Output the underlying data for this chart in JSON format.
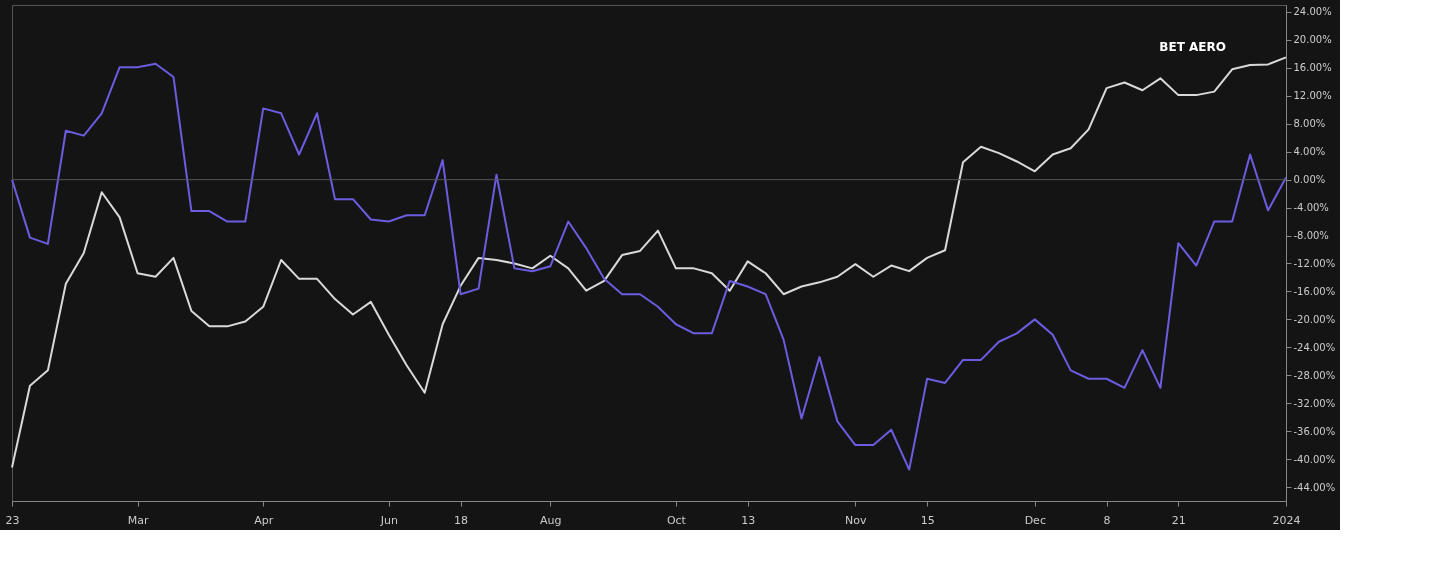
{
  "chart_data": {
    "type": "line",
    "categories": [
      "23",
      null,
      null,
      null,
      null,
      null,
      null,
      "Mar",
      null,
      null,
      null,
      null,
      null,
      null,
      "Apr",
      null,
      null,
      null,
      null,
      null,
      null,
      "Jun",
      null,
      null,
      null,
      "18",
      null,
      null,
      null,
      null,
      "Aug",
      null,
      null,
      null,
      null,
      null,
      null,
      "Oct",
      null,
      null,
      null,
      "13",
      null,
      null,
      null,
      null,
      null,
      "Nov",
      null,
      null,
      null,
      "15",
      null,
      null,
      null,
      null,
      null,
      "Dec",
      null,
      null,
      null,
      "8",
      null,
      null,
      null,
      "21",
      null,
      null,
      null,
      null,
      null,
      "2024"
    ],
    "series": [
      {
        "name": "BET AERO",
        "color": "#d9d9d9",
        "values": [
          -41.2,
          -29.5,
          -27.3,
          -14.9,
          -10.5,
          -1.8,
          -5.4,
          -13.4,
          -13.9,
          -11.2,
          -18.8,
          -21.0,
          -21.0,
          -20.3,
          -18.2,
          -11.5,
          -14.2,
          -14.2,
          -17.1,
          -19.3,
          -17.5,
          -22.2,
          -26.6,
          -30.5,
          -20.7,
          -15.2,
          -11.2,
          -11.5,
          -12.0,
          -12.7,
          -10.9,
          -12.7,
          -15.9,
          -14.5,
          -10.8,
          -10.2,
          -7.3,
          -12.7,
          -12.7,
          -13.4,
          -15.9,
          -11.7,
          -13.4,
          -16.4,
          -15.3,
          -14.7,
          -13.9,
          -12.1,
          -13.9,
          -12.3,
          -13.1,
          -11.2,
          -10.1,
          2.5,
          4.7,
          3.8,
          2.6,
          1.2,
          3.6,
          4.5,
          7.2,
          13.1,
          13.9,
          12.8,
          14.5,
          12.1,
          12.1,
          12.6,
          15.8,
          16.4,
          16.5,
          17.5
        ]
      },
      {
        "color": "#6b5ce0",
        "values": [
          0,
          -8.3,
          -9.2,
          7.0,
          6.3,
          9.5,
          16.1,
          16.1,
          16.6,
          14.7,
          -4.5,
          -4.5,
          -6.0,
          -6.0,
          10.2,
          9.5,
          3.6,
          9.5,
          -2.8,
          -2.8,
          -5.7,
          -6.0,
          -5.1,
          -5.1,
          2.8,
          -16.4,
          -15.6,
          0.7,
          -12.7,
          -13.1,
          -12.4,
          -6.0,
          -9.8,
          -14.2,
          -16.4,
          -16.4,
          -18.2,
          -20.7,
          -22.0,
          -22.0,
          -14.5,
          -15.3,
          -16.4,
          -22.9,
          -34.2,
          -25.4,
          -34.6,
          -38.0,
          -38.0,
          -35.8,
          -41.5,
          -28.5,
          -29.1,
          -25.8,
          -25.8,
          -23.2,
          -22.0,
          -20.0,
          -22.2,
          -27.3,
          -28.5,
          -28.5,
          -29.8,
          -24.4,
          -29.8,
          -9.1,
          -12.3,
          -6.0,
          -6.0,
          3.6,
          -4.4,
          0.3
        ]
      }
    ],
    "ylim": [
      -46,
      25
    ],
    "yticks": [
      {
        "value": 24,
        "label": "24.00%"
      },
      {
        "value": 20,
        "label": "20.00%"
      },
      {
        "value": 16,
        "label": "16.00%"
      },
      {
        "value": 12,
        "label": "12.00%"
      },
      {
        "value": 8,
        "label": "8.00%"
      },
      {
        "value": 4,
        "label": "4.00%"
      },
      {
        "value": 0,
        "label": "0.00%"
      },
      {
        "value": -4,
        "label": "-4.00%"
      },
      {
        "value": -8,
        "label": "-8.00%"
      },
      {
        "value": -12,
        "label": "-12.00%"
      },
      {
        "value": -16,
        "label": "-16.00%"
      },
      {
        "value": -20,
        "label": "-20.00%"
      },
      {
        "value": -24,
        "label": "-24.00%"
      },
      {
        "value": -28,
        "label": "-28.00%"
      },
      {
        "value": -32,
        "label": "-32.00%"
      },
      {
        "value": -36,
        "label": "-36.00%"
      },
      {
        "value": -40,
        "label": "-40.00%"
      },
      {
        "value": -44,
        "label": "-44.00%"
      }
    ],
    "ref_lines": [
      {
        "axis": "y",
        "value": 0,
        "color": "#555555"
      }
    ],
    "grid": false,
    "marker": "none",
    "line_style": "solid"
  }
}
